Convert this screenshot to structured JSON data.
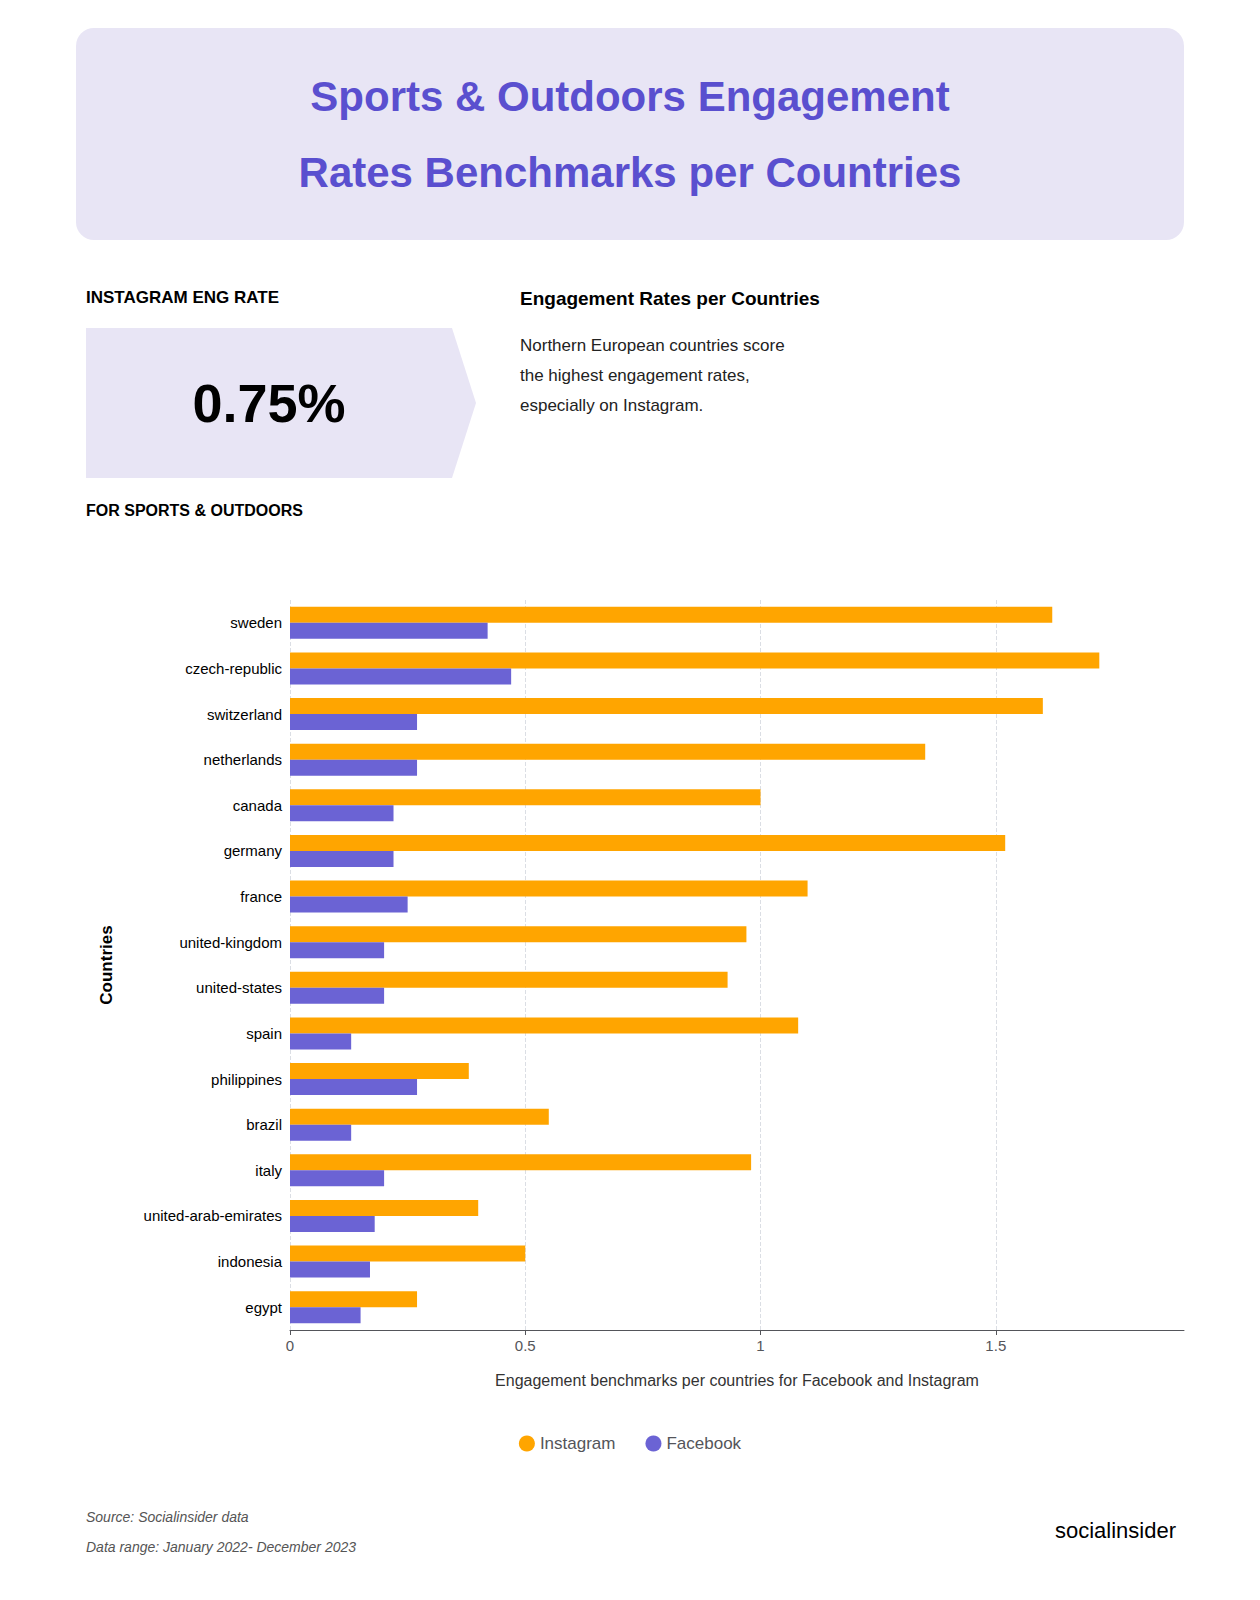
{
  "chart_data": {
    "type": "bar",
    "orientation": "horizontal",
    "title": "Sports & Outdoors Engagement\nRates Benchmarks per Countries",
    "xlabel": "Engagement benchmarks per countries for Facebook and Instagram",
    "ylabel": "Countries",
    "categories": [
      "sweden",
      "czech-republic",
      "switzerland",
      "netherlands",
      "canada",
      "germany",
      "france",
      "united-kingdom",
      "united-states",
      "spain",
      "philippines",
      "brazil",
      "italy",
      "united-arab-emirates",
      "indonesia",
      "egypt"
    ],
    "series": [
      {
        "name": "Instagram",
        "color": "#FFA500",
        "values": [
          1.62,
          1.72,
          1.6,
          1.35,
          1.0,
          1.52,
          1.1,
          0.97,
          0.93,
          1.08,
          0.38,
          0.55,
          0.98,
          0.4,
          0.5,
          0.27
        ]
      },
      {
        "name": "Facebook",
        "color": "#6B63D4",
        "values": [
          0.42,
          0.47,
          0.27,
          0.27,
          0.22,
          0.22,
          0.25,
          0.2,
          0.2,
          0.13,
          0.27,
          0.13,
          0.2,
          0.18,
          0.17,
          0.15
        ]
      }
    ],
    "xlim": [
      0,
      1.9
    ],
    "xticks": [
      0,
      0.5,
      1,
      1.5
    ],
    "grid": true,
    "legend": "bottom",
    "annotations": [
      "INSTAGRAM ENG RATE",
      "0.75%",
      "FOR SPORTS & OUTDOORS",
      "Engagement Rates per Countries",
      "Northern European countries score\nthe highest engagement rates,\nespecially on Instagram.",
      "Source: Socialinsider data",
      "Data range: January 2022- December 2023",
      "socialinsider"
    ]
  }
}
